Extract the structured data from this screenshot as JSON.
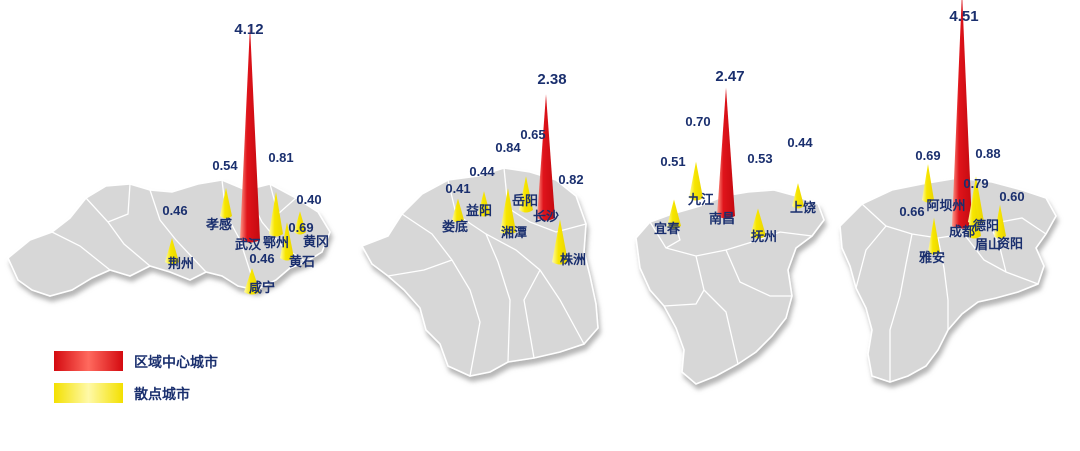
{
  "legend": {
    "core": {
      "label": "区域中心城市",
      "color": "#e0141b"
    },
    "scatter": {
      "label": "散点城市",
      "color": "#f5e400"
    }
  },
  "regions": [
    {
      "cities": [
        {
          "name": "武汉",
          "value": 4.12,
          "type": "core"
        },
        {
          "name": "孝感",
          "value": 0.54,
          "type": "scatter"
        },
        {
          "name": "荆州",
          "value": 0.46,
          "type": "scatter"
        },
        {
          "name": "鄂州",
          "value": 0.81,
          "type": "scatter"
        },
        {
          "name": "黄冈",
          "value": 0.4,
          "type": "scatter"
        },
        {
          "name": "黄石",
          "value": 0.69,
          "type": "scatter"
        },
        {
          "name": "咸宁",
          "value": 0.46,
          "type": "scatter"
        }
      ]
    },
    {
      "cities": [
        {
          "name": "长沙",
          "value": 2.38,
          "type": "core"
        },
        {
          "name": "娄底",
          "value": 0.41,
          "type": "scatter"
        },
        {
          "name": "益阳",
          "value": 0.44,
          "type": "scatter"
        },
        {
          "name": "湘潭",
          "value": 0.84,
          "type": "scatter"
        },
        {
          "name": "岳阳",
          "value": 0.65,
          "type": "scatter"
        },
        {
          "name": "株洲",
          "value": 0.82,
          "type": "scatter"
        }
      ]
    },
    {
      "cities": [
        {
          "name": "南昌",
          "value": 2.47,
          "type": "core"
        },
        {
          "name": "宜春",
          "value": 0.51,
          "type": "scatter"
        },
        {
          "name": "九江",
          "value": 0.7,
          "type": "scatter"
        },
        {
          "name": "抚州",
          "value": 0.53,
          "type": "scatter"
        },
        {
          "name": "上饶",
          "value": 0.44,
          "type": "scatter"
        }
      ]
    },
    {
      "cities": [
        {
          "name": "成都",
          "value": 4.51,
          "type": "core"
        },
        {
          "name": "阿坝州",
          "value": 0.69,
          "type": "scatter"
        },
        {
          "name": "雅安",
          "value": 0.66,
          "type": "scatter"
        },
        {
          "name": "德阳",
          "value": 0.88,
          "type": "scatter"
        },
        {
          "name": "眉山",
          "value": 0.79,
          "type": "scatter"
        },
        {
          "name": "资阳",
          "value": 0.6,
          "type": "scatter"
        }
      ]
    }
  ]
}
